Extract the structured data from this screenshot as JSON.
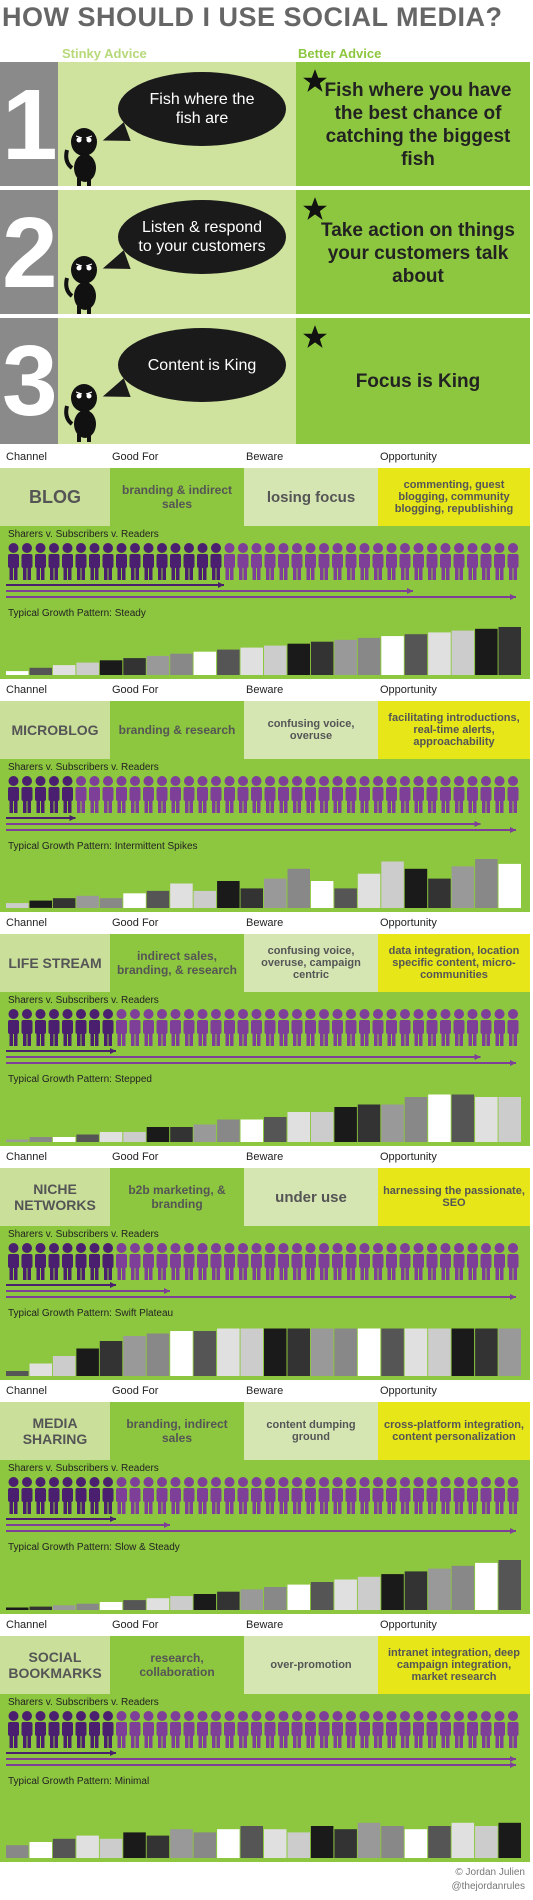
{
  "title": "HOW SHOULD I USE SOCIAL MEDIA?",
  "advice_headers": {
    "stinky": "Stinky Advice",
    "better": "Better Advice"
  },
  "advice": [
    {
      "num": "1",
      "stinky": "Fish where the fish are",
      "better": "Fish where you have the best chance of catching the biggest fish"
    },
    {
      "num": "2",
      "stinky": "Listen & respond to your customers",
      "better": "Take action on things your customers talk about"
    },
    {
      "num": "3",
      "stinky": "Content is King",
      "better": "Focus is King"
    }
  ],
  "column_headers": {
    "channel": "Channel",
    "good_for": "Good For",
    "beware": "Beware",
    "opportunity": "Opportunity"
  },
  "sharers_label": "Sharers v. Subscribers v. Readers",
  "growth_prefix": "Typical Growth Pattern: ",
  "colors": {
    "green": "#8dc63f",
    "light_green": "#cfe39f",
    "purple": "#7e3f98",
    "dark_purple": "#4b1f6f",
    "yellow": "#e6e619",
    "gray": "#8a8a8a"
  },
  "channels": [
    {
      "channel": "BLOG",
      "good_for": "branding & indirect sales",
      "beware": "losing focus",
      "opportunity": "commenting, guest blogging, community blogging, republishing",
      "growth": "Steady",
      "dark_people": 16,
      "arrow_sharers": 16,
      "arrow_subscribers": 30,
      "arrow_readers": 38
    },
    {
      "channel": "MICROBLOG",
      "good_for": "branding & research",
      "beware": "confusing voice, overuse",
      "opportunity": "facilitating introductions, real-time alerts, approachability",
      "growth": "Intermittent Spikes",
      "dark_people": 5,
      "arrow_sharers": 5,
      "arrow_subscribers": 35,
      "arrow_readers": 38
    },
    {
      "channel": "LIFE STREAM",
      "good_for": "indirect sales, branding, & research",
      "beware": "confusing voice, overuse, campaign centric",
      "opportunity": "data integration, location specific content, micro-communities",
      "growth": "Stepped",
      "dark_people": 8,
      "arrow_sharers": 8,
      "arrow_subscribers": 35,
      "arrow_readers": 38
    },
    {
      "channel": "NICHE NETWORKS",
      "good_for": "b2b marketing, & branding",
      "beware": "under use",
      "opportunity": "harnessing the passionate, SEO",
      "growth": "Swift Plateau",
      "dark_people": 8,
      "arrow_sharers": 8,
      "arrow_subscribers": 12,
      "arrow_readers": 38
    },
    {
      "channel": "MEDIA SHARING",
      "good_for": "branding, indirect sales",
      "beware": "content dumping ground",
      "opportunity": "cross-platform integration, content personalization",
      "growth": "Slow & Steady",
      "dark_people": 8,
      "arrow_sharers": 8,
      "arrow_subscribers": 12,
      "arrow_readers": 38
    },
    {
      "channel": "SOCIAL BOOKMARKS",
      "good_for": "research, collaboration",
      "beware": "over-promotion",
      "opportunity": "intranet integration, deep campaign integration, market research",
      "growth": "Minimal",
      "dark_people": 8,
      "arrow_sharers": 8,
      "arrow_subscribers": 38,
      "arrow_readers": 38
    }
  ],
  "credit": {
    "line1": "© Jordan Julien",
    "line2": "@thejordanrules"
  }
}
